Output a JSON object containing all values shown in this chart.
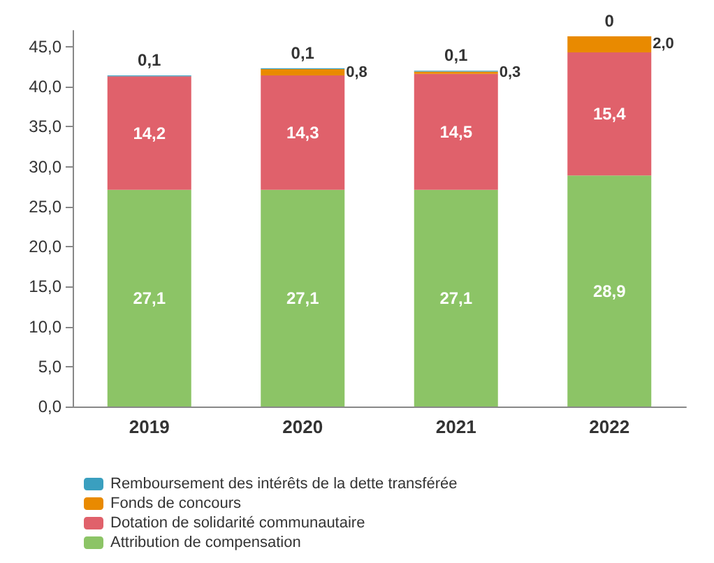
{
  "chart_data": {
    "type": "bar",
    "stacked": true,
    "categories": [
      "2019",
      "2020",
      "2021",
      "2022"
    ],
    "series": [
      {
        "name": "Attribution de compensation",
        "color": "#8cc466",
        "values": [
          27.1,
          27.1,
          27.1,
          28.9
        ],
        "value_labels": [
          "27,1",
          "27,1",
          "27,1",
          "28,9"
        ]
      },
      {
        "name": "Dotation de solidarité communautaire",
        "color": "#e0616b",
        "values": [
          14.2,
          14.3,
          14.5,
          15.4
        ],
        "value_labels": [
          "14,2",
          "14,3",
          "14,5",
          "15,4"
        ]
      },
      {
        "name": "Fonds de concours",
        "color": "#e98a00",
        "values": [
          null,
          0.8,
          0.3,
          2.0
        ],
        "value_labels": [
          null,
          "0,8",
          "0,3",
          "2,0"
        ]
      },
      {
        "name": "Remboursement des intérêts de la dette transférée",
        "color": "#3a9fbf",
        "values": [
          0.1,
          0.1,
          0.1,
          0
        ],
        "value_labels": [
          "0,1",
          "0,1",
          "0,1",
          "0"
        ]
      }
    ],
    "ylim": [
      0,
      47
    ],
    "yticks": [
      {
        "value": 0,
        "label": "0,0"
      },
      {
        "value": 5,
        "label": "5,0"
      },
      {
        "value": 10,
        "label": "10,0"
      },
      {
        "value": 15,
        "label": "15,0"
      },
      {
        "value": 20,
        "label": "20,0"
      },
      {
        "value": 25,
        "label": "25,0"
      },
      {
        "value": 30,
        "label": "30,0"
      },
      {
        "value": 35,
        "label": "35,0"
      },
      {
        "value": 40,
        "label": "40,0"
      },
      {
        "value": 45,
        "label": "45,0"
      }
    ],
    "grid": false,
    "legend": "bottom left"
  }
}
